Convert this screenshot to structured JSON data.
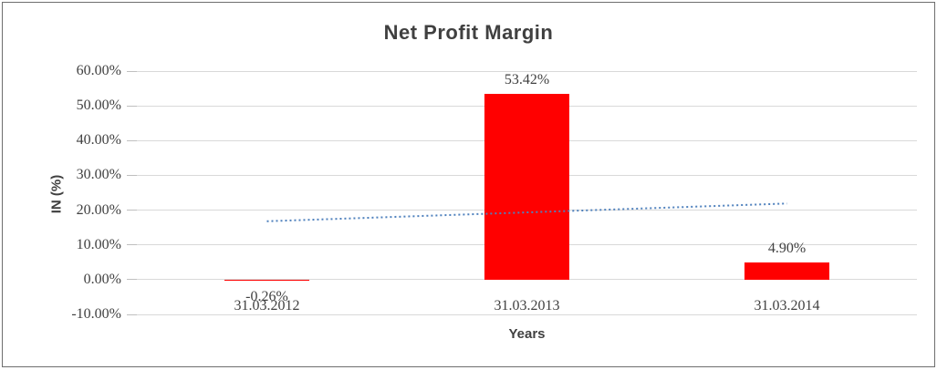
{
  "chart_data": {
    "type": "bar",
    "title": "Net Profit Margin",
    "xlabel": "Years",
    "ylabel": "IN (%)",
    "categories": [
      "31.03.2012",
      "31.03.2013",
      "31.03.2014"
    ],
    "values": [
      -0.26,
      53.42,
      4.9
    ],
    "data_labels": [
      "-0.26%",
      "53.42%",
      "4.90%"
    ],
    "y_ticks": [
      "60.00%",
      "50.00%",
      "40.00%",
      "30.00%",
      "20.00%",
      "10.00%",
      "0.00%",
      "-10.00%"
    ],
    "ylim": [
      -10,
      60
    ],
    "grid": true,
    "legend": "none",
    "bar_color": "#ff0000",
    "gridline_color": "#d9d9d9",
    "text_color": "#404040",
    "trendline": {
      "type": "linear",
      "style": "dotted",
      "color": "#4f81bd",
      "start_value": 16.8,
      "end_value": 21.9
    }
  }
}
